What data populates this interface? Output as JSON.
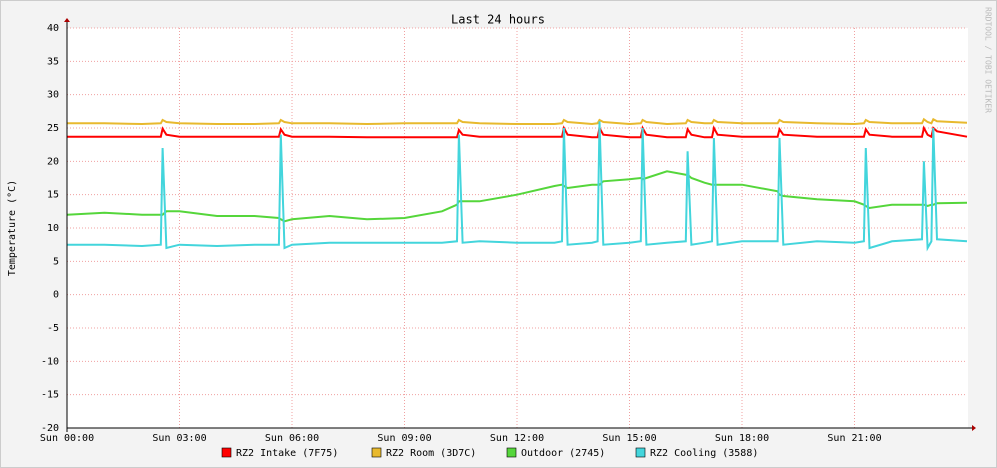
{
  "chart_data": {
    "type": "line",
    "title": "Last 24 hours",
    "y_label": "Temperature (°C)",
    "watermark": "RRDTOOL / TOBI OETIKER",
    "x": [
      0,
      1,
      2,
      2.5,
      2.55,
      2.65,
      3,
      4,
      5,
      5.65,
      5.7,
      5.8,
      6,
      7,
      8,
      9,
      10,
      10.4,
      10.45,
      10.55,
      11,
      12,
      13,
      13.2,
      13.25,
      13.35,
      14,
      14.15,
      14.2,
      14.3,
      15,
      15.3,
      15.35,
      15.45,
      16,
      16.5,
      16.55,
      16.65,
      17,
      17.2,
      17.25,
      17.35,
      18,
      18.95,
      19.0,
      19.1,
      20,
      21,
      21.25,
      21.3,
      21.4,
      22,
      22.8,
      22.85,
      22.95,
      23.05,
      23.1,
      23.2,
      24
    ],
    "series": [
      {
        "name": "RZ2 Intake (7F75)",
        "color": "#ff0000",
        "values": [
          23.7,
          23.7,
          23.7,
          23.7,
          24.9,
          24,
          23.7,
          23.7,
          23.7,
          23.7,
          24.8,
          24,
          23.7,
          23.7,
          23.6,
          23.6,
          23.6,
          23.6,
          24.7,
          24,
          23.7,
          23.7,
          23.7,
          23.7,
          25,
          24,
          23.6,
          23.6,
          25,
          24,
          23.6,
          23.6,
          25,
          24,
          23.6,
          23.6,
          24.8,
          24,
          23.6,
          23.6,
          25,
          24,
          23.7,
          23.7,
          24.8,
          24,
          23.7,
          23.7,
          23.7,
          24.8,
          24,
          23.7,
          23.7,
          25,
          24,
          23.7,
          25,
          24.5,
          23.7
        ]
      },
      {
        "name": "RZ2 Room (3D7C)",
        "color": "#e8b92e",
        "values": [
          25.7,
          25.7,
          25.6,
          25.7,
          26.2,
          25.9,
          25.7,
          25.6,
          25.6,
          25.7,
          26.2,
          25.9,
          25.7,
          25.7,
          25.6,
          25.7,
          25.7,
          25.7,
          26.2,
          25.9,
          25.7,
          25.6,
          25.6,
          25.7,
          26.2,
          25.9,
          25.6,
          25.7,
          26.2,
          25.9,
          25.6,
          25.7,
          26.2,
          25.9,
          25.6,
          25.7,
          26.2,
          25.9,
          25.7,
          25.7,
          26.2,
          25.9,
          25.7,
          25.7,
          26.2,
          25.9,
          25.7,
          25.6,
          25.7,
          26.2,
          25.9,
          25.7,
          25.7,
          26.3,
          25.9,
          25.7,
          26.3,
          26,
          25.8
        ]
      },
      {
        "name": "Outdoor (2745)",
        "color": "#55d63b",
        "values": [
          12,
          12.3,
          12,
          12,
          12,
          12.5,
          12.5,
          11.8,
          11.8,
          11.5,
          11.3,
          11,
          11.3,
          11.8,
          11.3,
          11.5,
          12.5,
          13.5,
          14,
          14,
          14,
          15,
          16.3,
          16.5,
          16.3,
          16,
          16.5,
          16.5,
          16.5,
          17,
          17.3,
          17.5,
          17.3,
          17.5,
          18.5,
          18,
          18,
          17.5,
          16.8,
          16.5,
          16.5,
          16.5,
          16.5,
          15.5,
          15,
          14.8,
          14.3,
          14,
          13.5,
          13.3,
          13,
          13.5,
          13.5,
          13.5,
          13.3,
          13.5,
          13.5,
          13.7,
          13.8
        ]
      },
      {
        "name": "RZ2 Cooling (3588)",
        "color": "#43d5dc",
        "values": [
          7.5,
          7.5,
          7.3,
          7.5,
          22,
          7,
          7.5,
          7.3,
          7.5,
          7.5,
          24,
          7,
          7.5,
          7.8,
          7.8,
          7.8,
          7.8,
          8,
          24,
          7.8,
          8,
          7.8,
          7.8,
          8,
          25,
          7.5,
          7.8,
          8,
          26,
          7.5,
          7.8,
          8,
          25,
          7.5,
          7.8,
          8,
          21.5,
          7.5,
          7.8,
          8,
          23.5,
          7.5,
          8,
          8,
          23.5,
          7.5,
          8,
          7.8,
          8,
          22,
          7,
          8,
          8.3,
          20,
          7,
          8,
          25,
          8.3,
          8
        ]
      }
    ],
    "xlim": [
      0,
      24
    ],
    "ylim": [
      -20,
      40
    ],
    "xticks": [
      {
        "value": 0,
        "label": "Sun 00:00"
      },
      {
        "value": 3,
        "label": "Sun 03:00"
      },
      {
        "value": 6,
        "label": "Sun 06:00"
      },
      {
        "value": 9,
        "label": "Sun 09:00"
      },
      {
        "value": 12,
        "label": "Sun 12:00"
      },
      {
        "value": 15,
        "label": "Sun 15:00"
      },
      {
        "value": 18,
        "label": "Sun 18:00"
      },
      {
        "value": 21,
        "label": "Sun 21:00"
      }
    ],
    "yticks": [
      -20,
      -15,
      -10,
      -5,
      0,
      5,
      10,
      15,
      20,
      25,
      30,
      35,
      40
    ],
    "grid": true
  }
}
